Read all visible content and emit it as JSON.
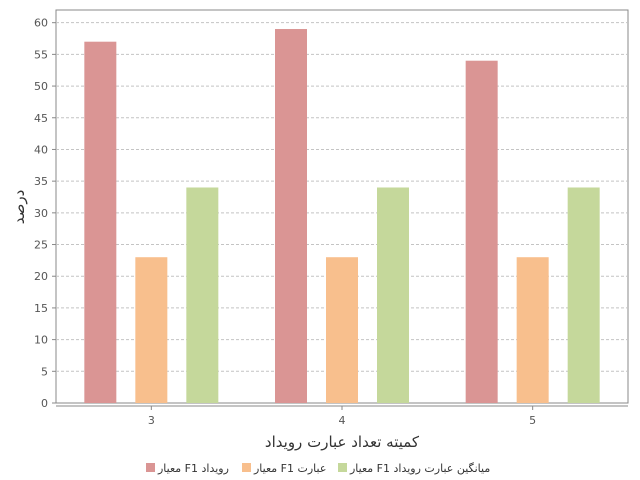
{
  "chart_data": {
    "type": "bar",
    "categories": [
      "3",
      "4",
      "5"
    ],
    "series": [
      {
        "name": "معیار F1  رویداد",
        "values": [
          57,
          59,
          54
        ],
        "color": "#da9594"
      },
      {
        "name": "معیار F1  عبارت",
        "values": [
          23,
          23,
          23
        ],
        "color": "#f8bf8d"
      },
      {
        "name": "معیار F1 میانگین عبارت رویداد",
        "values": [
          34,
          34,
          34
        ],
        "color": "#c5d89b"
      }
    ],
    "xlabel": "کمیته تعداد عبارت رویداد",
    "ylabel": "درصد",
    "ylim": [
      0,
      62
    ],
    "yticks": [
      0,
      5,
      10,
      15,
      20,
      25,
      30,
      35,
      40,
      45,
      50,
      55,
      60
    ],
    "grid": true,
    "legend_position": "bottom"
  }
}
